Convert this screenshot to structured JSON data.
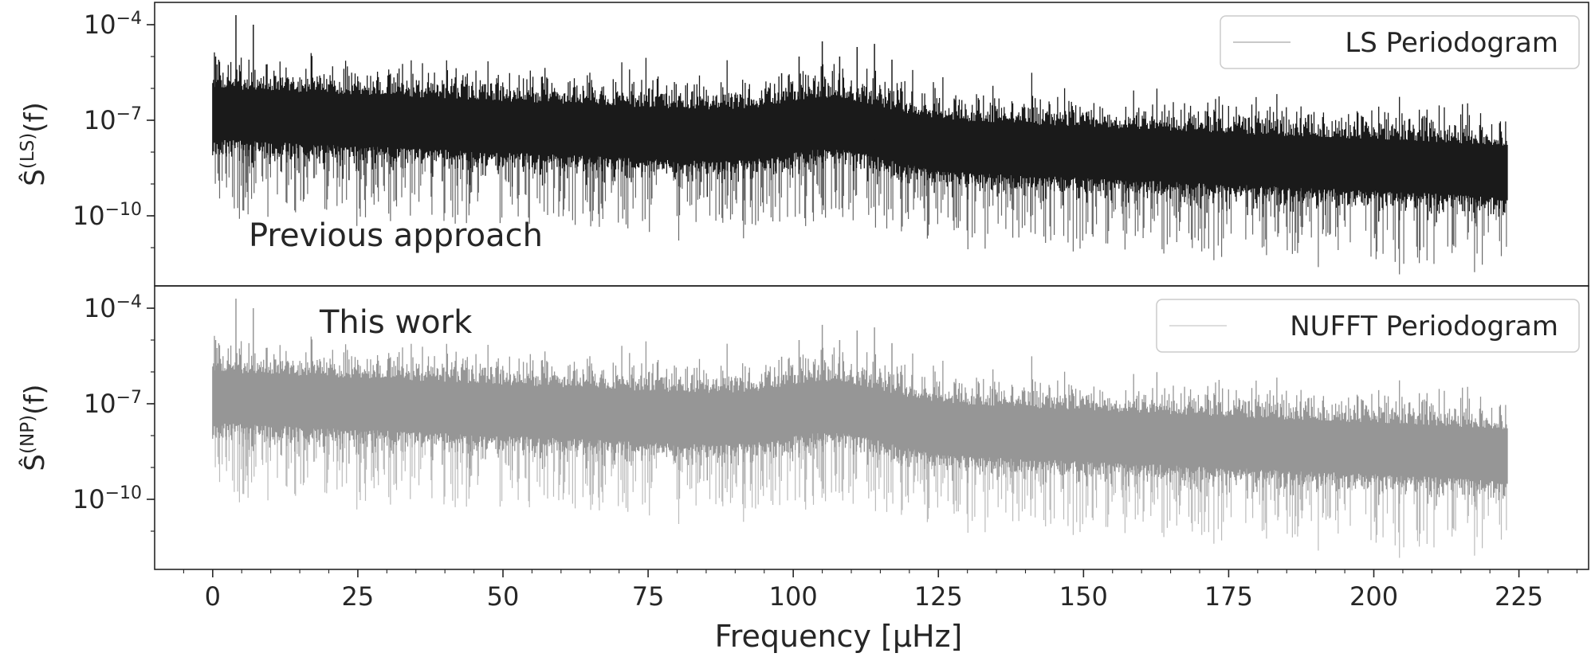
{
  "chart_data": [
    {
      "type": "line",
      "panel": "top",
      "scale_y": "log",
      "xlim": [
        -10,
        237
      ],
      "ylim_exp": [
        -12.2,
        -3.3
      ],
      "ylabel_base": "Ŝ",
      "ylabel_sup": "(LS)",
      "ylabel_tail": "(f)",
      "y_ticks": [
        {
          "value": 0.0001,
          "base": "10",
          "exp": "−4"
        },
        {
          "value": 1e-07,
          "base": "10",
          "exp": "−7"
        },
        {
          "value": 1e-10,
          "base": "10",
          "exp": "−10"
        }
      ],
      "annotation": "Previous approach",
      "legend": "top-right",
      "series": [
        {
          "name": "LS Periodogram",
          "color": "#1a1a1a",
          "freq_range": [
            0,
            223
          ],
          "median_log10": [
            -6.7,
            -8.5
          ],
          "peaks": [
            {
              "x": 0.5,
              "y": 1e-05
            },
            {
              "x": 4,
              "y": 0.0002
            },
            {
              "x": 7,
              "y": 0.0001
            },
            {
              "x": 98,
              "y": 3e-06
            },
            {
              "x": 101,
              "y": 1e-05
            },
            {
              "x": 105,
              "y": 3e-05
            },
            {
              "x": 108,
              "y": 1e-05
            },
            {
              "x": 111,
              "y": 2e-05
            },
            {
              "x": 114,
              "y": 2.5e-05
            },
            {
              "x": 117,
              "y": 8e-06
            }
          ]
        }
      ]
    },
    {
      "type": "line",
      "panel": "bottom",
      "scale_y": "log",
      "xlim": [
        -10,
        237
      ],
      "ylim_exp": [
        -12.2,
        -3.3
      ],
      "ylabel_base": "Ŝ",
      "ylabel_sup": "(NP)",
      "ylabel_tail": "(f)",
      "y_ticks": [
        {
          "value": 0.0001,
          "base": "10",
          "exp": "−4"
        },
        {
          "value": 1e-07,
          "base": "10",
          "exp": "−7"
        },
        {
          "value": 1e-10,
          "base": "10",
          "exp": "−10"
        }
      ],
      "xlabel": "Frequency [μHz]",
      "x_ticks": [
        "0",
        "25",
        "50",
        "75",
        "100",
        "125",
        "150",
        "175",
        "200",
        "225"
      ],
      "annotation": "This work",
      "legend": "top-right",
      "series": [
        {
          "name": "NUFFT Periodogram",
          "color": "#969696",
          "freq_range": [
            0,
            223
          ],
          "median_log10": [
            -6.7,
            -8.5
          ],
          "peaks": [
            {
              "x": 0.5,
              "y": 1e-05
            },
            {
              "x": 4,
              "y": 0.0002
            },
            {
              "x": 7,
              "y": 0.0001
            },
            {
              "x": 98,
              "y": 3e-06
            },
            {
              "x": 101,
              "y": 1e-05
            },
            {
              "x": 105,
              "y": 3e-05
            },
            {
              "x": 108,
              "y": 1e-05
            },
            {
              "x": 111,
              "y": 2e-05
            },
            {
              "x": 114,
              "y": 2.5e-05
            },
            {
              "x": 117,
              "y": 8e-06
            }
          ]
        }
      ]
    }
  ]
}
